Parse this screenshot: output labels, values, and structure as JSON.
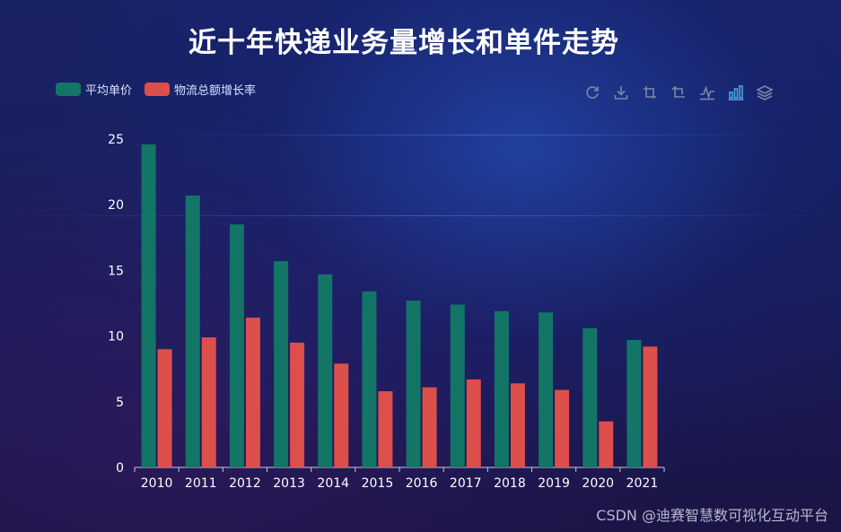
{
  "colors": {
    "series_avg_price": "#137566",
    "series_growth": "#dc4f4b",
    "toolbox_icon": "#7d86a6",
    "toolbox_active": "#4ea4e8"
  },
  "legend": {
    "items": [
      "平均单价",
      "物流总额增长率"
    ]
  },
  "toolbox": {
    "icons": [
      "restore-icon",
      "save-image-icon",
      "zoom-icon",
      "zoom-reset-icon",
      "line-chart-icon",
      "bar-chart-icon",
      "stack-icon"
    ]
  },
  "watermark": "CSDN @迪赛智慧数可视化互动平台",
  "chart_data": {
    "type": "bar",
    "title": "近十年快递业务量增长和单件走势",
    "xlabel": "",
    "ylabel": "",
    "categories": [
      "2010",
      "2011",
      "2012",
      "2013",
      "2014",
      "2015",
      "2016",
      "2017",
      "2018",
      "2019",
      "2020",
      "2021"
    ],
    "series": [
      {
        "name": "平均单价",
        "values": [
          24.6,
          20.7,
          18.5,
          15.7,
          14.7,
          13.4,
          12.7,
          12.4,
          11.9,
          11.8,
          10.6,
          9.7
        ]
      },
      {
        "name": "物流总额增长率",
        "values": [
          9.0,
          9.9,
          11.4,
          9.5,
          7.9,
          5.8,
          6.1,
          6.7,
          6.4,
          5.9,
          3.5,
          9.2
        ]
      }
    ],
    "ylim": [
      0,
      25
    ],
    "yticks": [
      0,
      5,
      10,
      15,
      20,
      25
    ],
    "legend_position": "top-left"
  }
}
